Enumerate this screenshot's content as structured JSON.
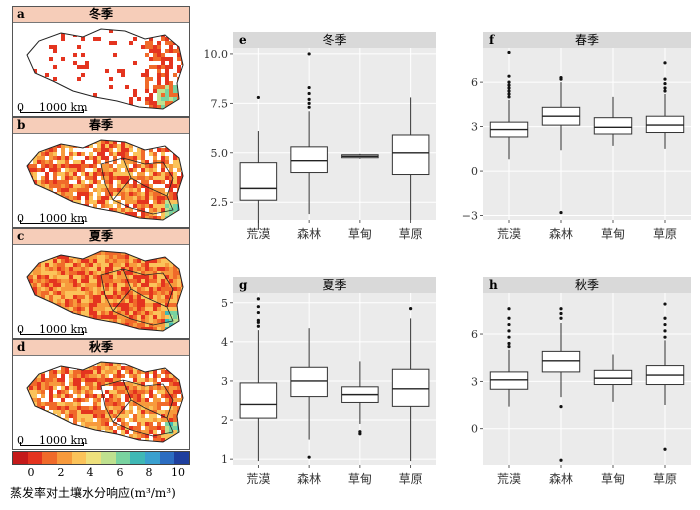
{
  "maps": [
    {
      "letter": "a",
      "title": "冬季"
    },
    {
      "letter": "b",
      "title": "春季"
    },
    {
      "letter": "c",
      "title": "夏季"
    },
    {
      "letter": "d",
      "title": "秋季"
    }
  ],
  "scale": {
    "zero": "0",
    "label": "1000 km"
  },
  "legend": {
    "ticks": [
      "0",
      "2",
      "4",
      "6",
      "8",
      "10"
    ],
    "label": "蒸发率对土壤水分响应(m³/m³)",
    "colors": [
      "#c41a1a",
      "#e4341f",
      "#f06a2a",
      "#f79a3c",
      "#fbc35a",
      "#eee07c",
      "#bfe18f",
      "#79d3a0",
      "#3fb8b5",
      "#3aa0cf",
      "#2c6dc1",
      "#1e3f9e"
    ]
  },
  "chart_data": [
    {
      "type": "box",
      "panel": "e",
      "title": "冬季",
      "categories": [
        "荒漠",
        "森林",
        "草甸",
        "草原"
      ],
      "ylim": [
        1.6,
        10.3
      ],
      "yticks": [
        "2.5",
        "5.0",
        "7.5",
        "10.0"
      ],
      "boxes": [
        {
          "min": 1.1,
          "q1": 2.6,
          "median": 3.2,
          "q3": 4.5,
          "max": 6.1,
          "outliers": [
            7.8
          ]
        },
        {
          "min": 1.9,
          "q1": 4.0,
          "median": 4.6,
          "q3": 5.3,
          "max": 7.1,
          "outliers": [
            7.3,
            7.5,
            7.7,
            8.0,
            8.3,
            10.0
          ]
        },
        {
          "min": 4.7,
          "q1": 4.75,
          "median": 4.82,
          "q3": 4.9,
          "max": 4.95,
          "outliers": []
        },
        {
          "min": 1.6,
          "q1": 3.9,
          "median": 5.0,
          "q3": 5.9,
          "max": 7.8,
          "outliers": []
        }
      ]
    },
    {
      "type": "box",
      "panel": "f",
      "title": "春季",
      "categories": [
        "荒漠",
        "森林",
        "草甸",
        "草原"
      ],
      "ylim": [
        -3.3,
        8.3
      ],
      "yticks": [
        "−3",
        "0",
        "3",
        "6"
      ],
      "boxes": [
        {
          "min": 0.8,
          "q1": 2.3,
          "median": 2.8,
          "q3": 3.3,
          "max": 4.8,
          "outliers": [
            5.0,
            5.2,
            5.4,
            5.6,
            5.8,
            6.0,
            6.4,
            8.0
          ]
        },
        {
          "min": 1.4,
          "q1": 3.1,
          "median": 3.7,
          "q3": 4.3,
          "max": 6.0,
          "outliers": [
            6.2,
            6.3,
            -2.8
          ]
        },
        {
          "min": 1.7,
          "q1": 2.5,
          "median": 2.95,
          "q3": 3.6,
          "max": 5.0,
          "outliers": []
        },
        {
          "min": 1.5,
          "q1": 2.6,
          "median": 3.1,
          "q3": 3.7,
          "max": 5.2,
          "outliers": [
            5.4,
            5.6,
            5.9,
            6.2,
            7.3
          ]
        }
      ]
    },
    {
      "type": "box",
      "panel": "g",
      "title": "夏季",
      "categories": [
        "荒漠",
        "森林",
        "草甸",
        "草原"
      ],
      "ylim": [
        0.85,
        5.25
      ],
      "yticks": [
        "1",
        "2",
        "3",
        "4",
        "5"
      ],
      "boxes": [
        {
          "min": 0.95,
          "q1": 2.05,
          "median": 2.4,
          "q3": 2.95,
          "max": 4.3,
          "outliers": [
            4.4,
            4.5,
            4.55,
            4.75,
            4.9,
            5.1
          ]
        },
        {
          "min": 1.5,
          "q1": 2.6,
          "median": 3.0,
          "q3": 3.35,
          "max": 4.35,
          "outliers": [
            1.05
          ]
        },
        {
          "min": 1.9,
          "q1": 2.45,
          "median": 2.65,
          "q3": 2.85,
          "max": 3.5,
          "outliers": [
            1.65,
            1.7
          ]
        },
        {
          "min": 0.95,
          "q1": 2.35,
          "median": 2.8,
          "q3": 3.3,
          "max": 4.6,
          "outliers": [
            4.85
          ]
        }
      ]
    },
    {
      "type": "box",
      "panel": "h",
      "title": "秋季",
      "categories": [
        "荒漠",
        "森林",
        "草甸",
        "草原"
      ],
      "ylim": [
        -2.3,
        8.6
      ],
      "yticks": [
        "0",
        "3",
        "6"
      ],
      "boxes": [
        {
          "min": 1.4,
          "q1": 2.5,
          "median": 3.1,
          "q3": 3.6,
          "max": 5.0,
          "outliers": [
            5.2,
            5.4,
            5.8,
            6.2,
            6.6,
            7.0,
            7.6
          ]
        },
        {
          "min": 2.0,
          "q1": 3.6,
          "median": 4.3,
          "q3": 4.9,
          "max": 6.7,
          "outliers": [
            7.0,
            7.3,
            7.6,
            1.4,
            -2.0
          ]
        },
        {
          "min": 1.7,
          "q1": 2.8,
          "median": 3.2,
          "q3": 3.7,
          "max": 4.7,
          "outliers": []
        },
        {
          "min": 1.5,
          "q1": 2.8,
          "median": 3.4,
          "q3": 4.0,
          "max": 5.6,
          "outliers": [
            5.8,
            6.2,
            6.6,
            7.0,
            7.9,
            -1.3
          ]
        }
      ]
    }
  ]
}
